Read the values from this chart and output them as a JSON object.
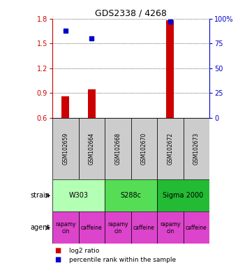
{
  "title": "GDS2338 / 4268",
  "samples": [
    "GSM102659",
    "GSM102664",
    "GSM102668",
    "GSM102670",
    "GSM102672",
    "GSM102673"
  ],
  "log2_ratio": [
    0.86,
    0.95,
    null,
    null,
    1.78,
    null
  ],
  "percentile_rank": [
    88,
    80,
    null,
    null,
    97,
    null
  ],
  "ylim_left": [
    0.6,
    1.8
  ],
  "yticks_left": [
    0.6,
    0.9,
    1.2,
    1.5,
    1.8
  ],
  "yticks_right": [
    0,
    25,
    50,
    75,
    100
  ],
  "strains": [
    {
      "label": "W303",
      "cols": [
        0,
        1
      ],
      "color": "#b3ffb3"
    },
    {
      "label": "S288c",
      "cols": [
        2,
        3
      ],
      "color": "#55dd55"
    },
    {
      "label": "Sigma 2000",
      "cols": [
        4,
        5
      ],
      "color": "#22bb33"
    }
  ],
  "agents": [
    {
      "label": "rapamycin",
      "col": 0
    },
    {
      "label": "caffeine",
      "col": 1
    },
    {
      "label": "rapamycin",
      "col": 2
    },
    {
      "label": "caffeine",
      "col": 3
    },
    {
      "label": "rapamycin",
      "col": 4
    },
    {
      "label": "caffeine",
      "col": 5
    }
  ],
  "agent_color": "#dd44cc",
  "bar_color": "#cc0000",
  "dot_color": "#0000cc",
  "left_axis_color": "#cc0000",
  "right_axis_color": "#0000cc",
  "sample_bg_color": "#cccccc",
  "legend_red_label": "log2 ratio",
  "legend_blue_label": "percentile rank within the sample"
}
